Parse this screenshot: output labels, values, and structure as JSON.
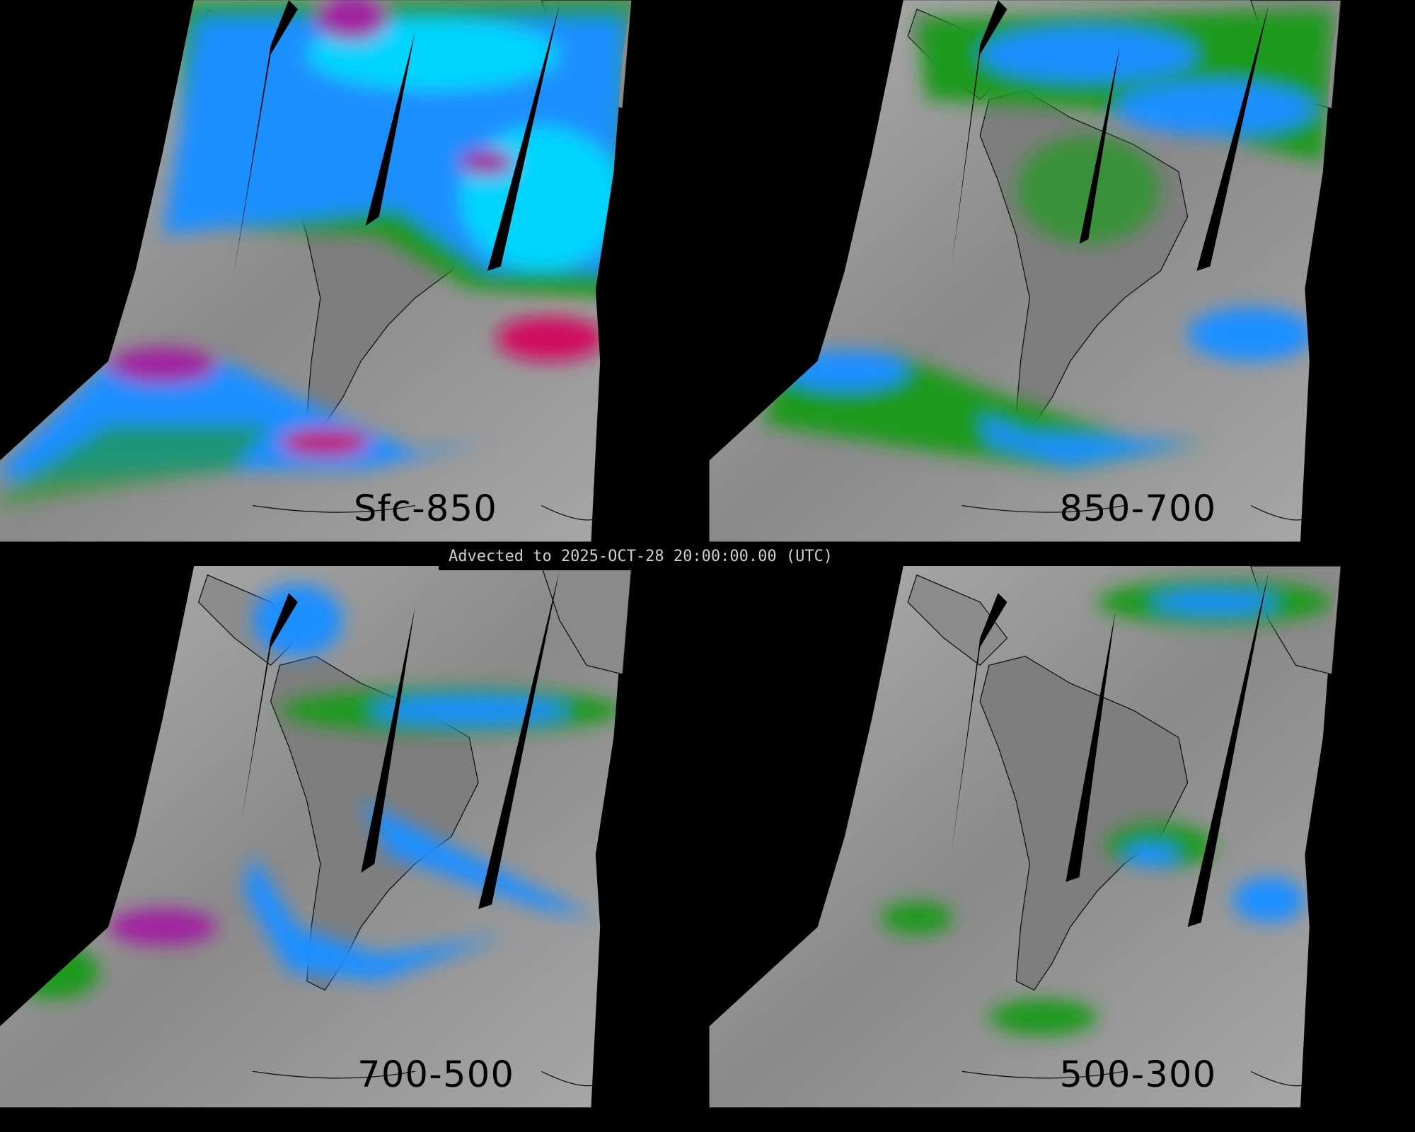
{
  "panels": [
    {
      "label": "Sfc-850"
    },
    {
      "label": "850-700"
    },
    {
      "label": "700-500"
    },
    {
      "label": "500-300"
    }
  ],
  "timestamp": "Advected to 2025-OCT-28 20:00:00.00 (UTC)",
  "colors": {
    "background": "#000000",
    "low_moisture_gray": "#9a9a9a",
    "green": "#1f9a1f",
    "blue": "#1e8fff",
    "cyan": "#00d4ff",
    "magenta": "#a020a0",
    "red": "#d01020"
  }
}
